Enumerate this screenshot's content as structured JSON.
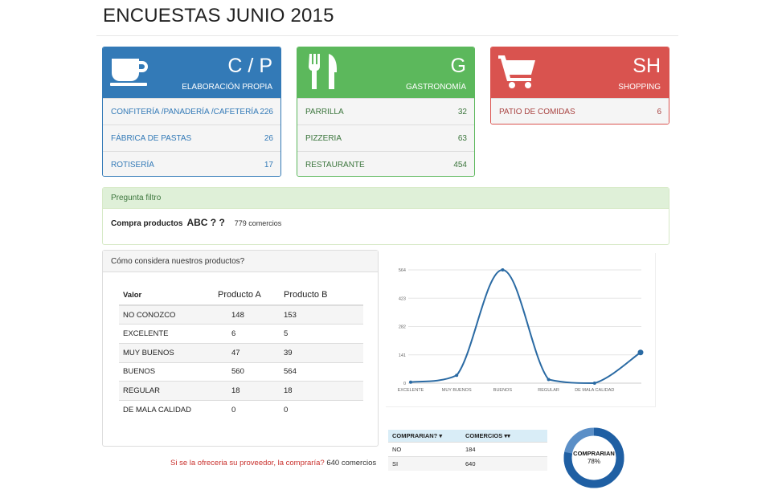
{
  "page": {
    "title": "ENCUESTAS JUNIO 2015"
  },
  "colors": {
    "blue": "#337ab7",
    "green": "#5cb85c",
    "red": "#d9534f",
    "line": "#2a6aa3"
  },
  "panels": {
    "cp": {
      "code": "C / P",
      "subtitle": "ELABORACIÓN PROPIA",
      "icon": "coffee-cup-icon",
      "rows": [
        {
          "label": "CONFITERÍA /PANADERÍA /CAFETERÍA",
          "value": "226"
        },
        {
          "label": "FÁBRICA DE PASTAS",
          "value": "26"
        },
        {
          "label": "ROTISERÍA",
          "value": "17"
        }
      ]
    },
    "g": {
      "code": "G",
      "subtitle": "GASTRONOMÍA",
      "icon": "fork-knife-icon",
      "rows": [
        {
          "label": "PARRILLA",
          "value": "32"
        },
        {
          "label": "PIZZERIA",
          "value": "63"
        },
        {
          "label": "RESTAURANTE",
          "value": "454"
        }
      ]
    },
    "sh": {
      "code": "SH",
      "subtitle": "SHOPPING",
      "icon": "shopping-cart-icon",
      "rows": [
        {
          "label": "PATIO DE COMIDAS",
          "value": "6"
        }
      ]
    }
  },
  "filter": {
    "header": "Pregunta filtro",
    "question": "Compra productos",
    "brand": "ABC ? ?",
    "count": "779 comercios"
  },
  "products": {
    "header": "Cómo considera nuestros productos?",
    "columns": [
      "Valor",
      "Producto A",
      "Producto B"
    ],
    "rows": [
      [
        "NO CONOZCO",
        "148",
        "153"
      ],
      [
        "EXCELENTE",
        "6",
        "5"
      ],
      [
        "MUY BUENOS",
        "47",
        "39"
      ],
      [
        "BUENOS",
        "560",
        "564"
      ],
      [
        "REGULAR",
        "18",
        "18"
      ],
      [
        "DE MALA CALIDAD",
        "0",
        "0"
      ]
    ]
  },
  "chart_data": {
    "type": "line",
    "categories": [
      "EXCELENTE",
      "MUY BUENOS",
      "BUENOS",
      "REGULAR",
      "DE MALA CALIDAD",
      ""
    ],
    "x_labels": [
      "EXCELENTE",
      "MUY BUENOS",
      "BUENOS",
      "REGULAR",
      "DE MALA CALIDAD"
    ],
    "y_ticks": [
      "564",
      "423",
      "282",
      "141",
      "0"
    ],
    "ylim": [
      0,
      564
    ],
    "series": [
      {
        "values": [
          5,
          39,
          564,
          18,
          0,
          153
        ]
      }
    ],
    "grid": true
  },
  "question": {
    "text": "Si se la ofreceria su proveedor, la compraría?",
    "count": "640 comercios"
  },
  "comprarian": {
    "columns": [
      "COMPRARIAN? ▾",
      "COMERCIOS ▾▾"
    ],
    "rows": [
      [
        "NO",
        "184"
      ],
      [
        "SI",
        "640"
      ]
    ]
  },
  "donut": {
    "label": "COMPRARIAN",
    "percent": "78%",
    "value": 0.78
  }
}
